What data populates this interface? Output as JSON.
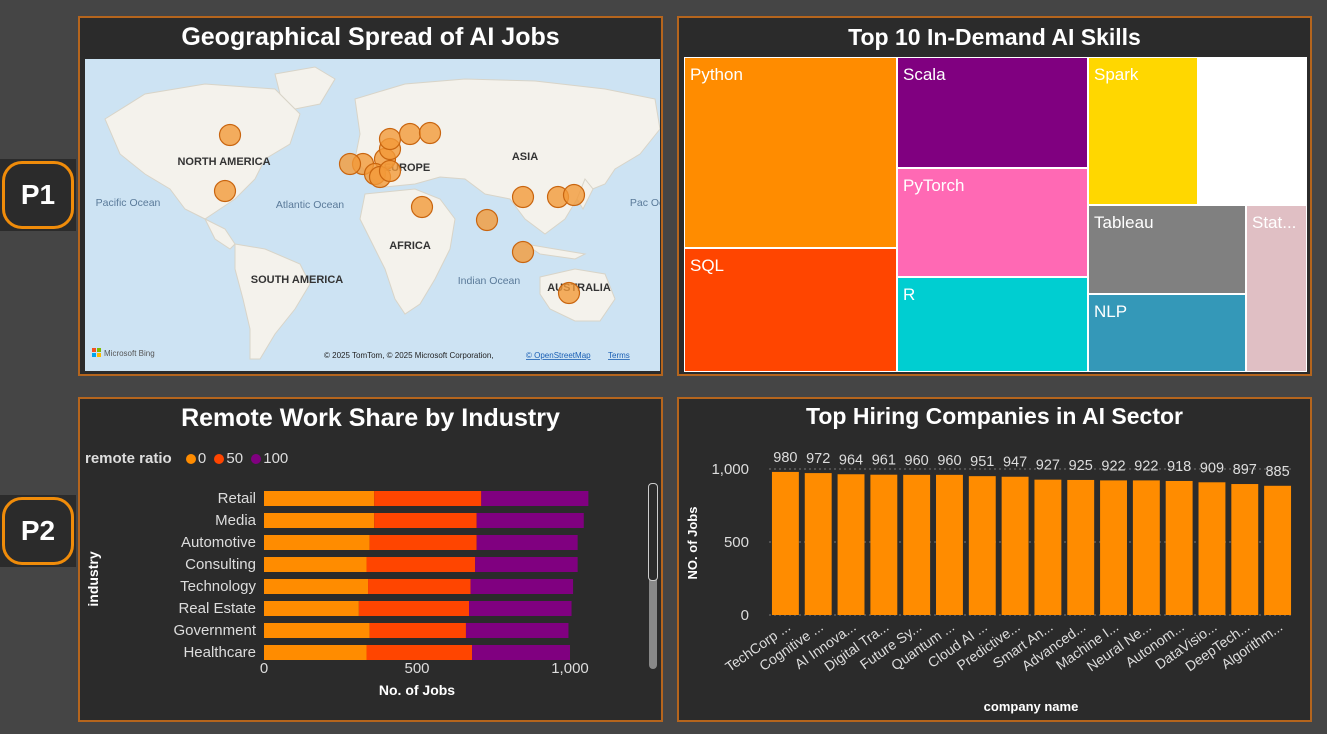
{
  "badges": {
    "p1": "P1",
    "p2": "P2"
  },
  "colors": {
    "accent": "#f08c0a",
    "border": "#b5651d",
    "panel": "#2b2b2b"
  },
  "map_panel": {
    "title": "Geographical Spread of AI Jobs",
    "labels": {
      "north_america": "NORTH AMERICA",
      "europe": "EUROPE",
      "asia": "ASIA",
      "africa": "AFRICA",
      "south_america": "SOUTH AMERICA",
      "australia": "AUSTRALIA",
      "pacific": "Pacific Ocean",
      "atlantic": "Atlantic Ocean",
      "indian": "Indian Ocean",
      "pacific_right": "Pac Oce"
    },
    "brand": "Microsoft Bing",
    "copyright": "© 2025 TomTom, © 2025 Microsoft Corporation,",
    "osm": "© OpenStreetMap",
    "terms": "Terms",
    "pins": [
      {
        "name": "Canada"
      },
      {
        "name": "USA"
      },
      {
        "name": "UK"
      },
      {
        "name": "Ireland"
      },
      {
        "name": "Netherlands"
      },
      {
        "name": "Germany"
      },
      {
        "name": "Denmark"
      },
      {
        "name": "Sweden"
      },
      {
        "name": "Finland"
      },
      {
        "name": "France"
      },
      {
        "name": "Switzerland"
      },
      {
        "name": "Austria"
      },
      {
        "name": "Israel"
      },
      {
        "name": "India"
      },
      {
        "name": "China"
      },
      {
        "name": "South Korea"
      },
      {
        "name": "Japan"
      },
      {
        "name": "Singapore"
      },
      {
        "name": "Australia"
      }
    ]
  },
  "treemap_panel": {
    "title": "Top 10 In-Demand AI Skills",
    "tiles": [
      {
        "label": "Python",
        "color": "#ff8c00"
      },
      {
        "label": "SQL",
        "color": "#ff4500"
      },
      {
        "label": "Scala",
        "color": "#800080"
      },
      {
        "label": "PyTorch",
        "color": "#ff69b4"
      },
      {
        "label": "R",
        "color": "#00ced1"
      },
      {
        "label": "Spark",
        "color": "#ffd700"
      },
      {
        "label": "",
        "color": "#ffffff"
      },
      {
        "label": "Tableau",
        "color": "#808080"
      },
      {
        "label": "NLP",
        "color": "#3498b8"
      },
      {
        "label": "Stat...",
        "color": "#e0bfc4"
      }
    ]
  },
  "remote_panel": {
    "title": "Remote Work Share by Industry",
    "legend_title": "remote ratio",
    "legend": [
      {
        "label": "0",
        "color": "#ff8c00"
      },
      {
        "label": "50",
        "color": "#ff4500"
      },
      {
        "label": "100",
        "color": "#800080"
      }
    ]
  },
  "companies_panel": {
    "title": "Top Hiring Companies in AI Sector"
  },
  "chart_data": [
    {
      "type": "bar",
      "orientation": "horizontal",
      "stacked": true,
      "title": "Remote Work Share by Industry",
      "xlabel": "No. of Jobs",
      "ylabel": "industry",
      "categories": [
        "Retail",
        "Media",
        "Automotive",
        "Consulting",
        "Technology",
        "Real Estate",
        "Government",
        "Healthcare"
      ],
      "series": [
        {
          "name": "0",
          "color": "#ff8c00",
          "values": [
            360,
            360,
            345,
            335,
            340,
            310,
            345,
            335
          ]
        },
        {
          "name": "50",
          "color": "#ff4500",
          "values": [
            350,
            335,
            350,
            355,
            335,
            360,
            315,
            345
          ]
        },
        {
          "name": "100",
          "color": "#800080",
          "values": [
            350,
            350,
            330,
            335,
            335,
            335,
            335,
            320
          ]
        }
      ],
      "xlim": [
        0,
        1060
      ],
      "xticks": [
        "0",
        "500",
        "1,000"
      ],
      "legend": "top-left"
    },
    {
      "type": "bar",
      "title": "Top Hiring Companies in AI Sector",
      "xlabel": "company name",
      "ylabel": "NO. of Jobs",
      "categories": [
        "TechCorp ...",
        "Cognitive ...",
        "AI Innova...",
        "Digital Tra...",
        "Future Sy...",
        "Quantum ...",
        "Cloud AI ...",
        "Predictive...",
        "Smart An...",
        "Advanced...",
        "Machine I...",
        "Neural Ne...",
        "Autonom...",
        "DataVisio...",
        "DeepTech...",
        "Algorithm..."
      ],
      "values": [
        980,
        972,
        964,
        961,
        960,
        960,
        951,
        947,
        927,
        925,
        922,
        922,
        918,
        909,
        897,
        885
      ],
      "data_labels": [
        "980",
        "972",
        "964",
        "961",
        "960",
        "960",
        "951",
        "947",
        "927",
        "925",
        "922",
        "922",
        "918",
        "909",
        "897",
        "885"
      ],
      "color": "#ff8c00",
      "ylim": [
        0,
        1000
      ],
      "yticks": [
        "0",
        "500",
        "1,000"
      ],
      "grid": true
    }
  ]
}
